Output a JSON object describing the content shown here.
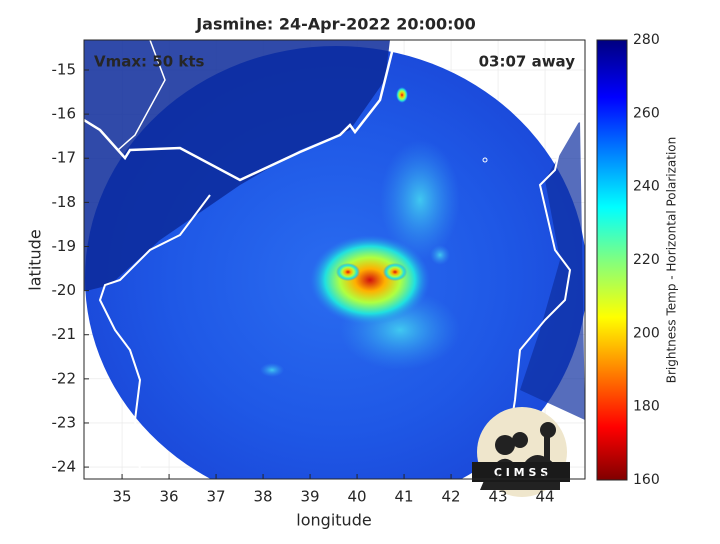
{
  "title": "Jasmine: 24-Apr-2022 20:00:00",
  "annotations": {
    "vmax": "Vmax: 50 kts",
    "away": "03:07 away"
  },
  "axes": {
    "xlabel": "longitude",
    "ylabel": "latitude",
    "xlim": [
      34.19,
      44.85
    ],
    "ylim": [
      -24.27,
      -14.32
    ],
    "xticks": [
      35,
      36,
      37,
      38,
      39,
      40,
      41,
      42,
      43,
      44
    ],
    "yticks": [
      -15,
      -16,
      -17,
      -18,
      -19,
      -20,
      -21,
      -22,
      -23,
      -24
    ],
    "grid": true
  },
  "colorbar": {
    "label": "Brightness Temp - Horizontal Polarization",
    "lim": [
      160,
      280
    ],
    "ticks": [
      160,
      180,
      200,
      220,
      240,
      260,
      280
    ]
  },
  "logo": "C I M S S"
}
